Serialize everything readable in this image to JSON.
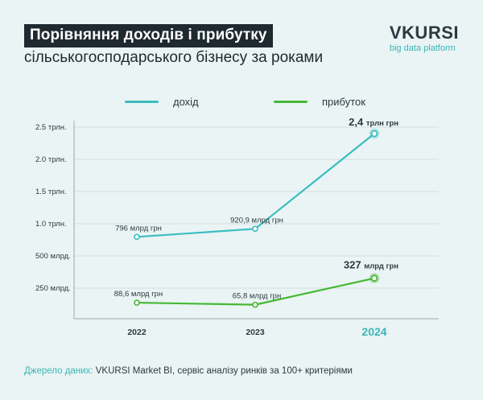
{
  "header": {
    "title_line1": "Порівняння доходів і прибутку",
    "title_line2": "сільськогосподарського бізнесу за роками"
  },
  "brand": {
    "name": "VKURSI",
    "tagline": "big data platform"
  },
  "colors": {
    "revenue": "#3bbdc1",
    "profit": "#45b835",
    "highlight": "#3ab6b8",
    "grid": "#d3dede",
    "text": "#2b3a42"
  },
  "footer": {
    "source_label": "Джерело даних:",
    "source_text": " VKURSI Market BI, сервіс аналізу ринків за 100+ критеріями"
  },
  "chart_data": {
    "type": "line",
    "title": "Порівняння доходів і прибутку сільськогосподарського бізнесу за роками",
    "categories": [
      "2022",
      "2023",
      "2024"
    ],
    "y_ticks": [
      "2.5 трлн.",
      "2.0 трлн.",
      "1.5 трлн.",
      "1.0 трлн.",
      "500 млрд.",
      "250 млрд."
    ],
    "series": [
      {
        "name": "дохід",
        "values": [
          0.796,
          0.9209,
          2.4
        ],
        "point_labels": [
          "796 млрд грн",
          "920,9 млрд грн",
          "2,4 трлн грн"
        ]
      },
      {
        "name": "прибуток",
        "values": [
          0.0886,
          0.0658,
          0.327
        ],
        "point_labels": [
          "88,6 млрд грн",
          "65,8 млрд грн",
          "327 млрд грн"
        ]
      }
    ],
    "legend_position": "top",
    "grid": true
  }
}
